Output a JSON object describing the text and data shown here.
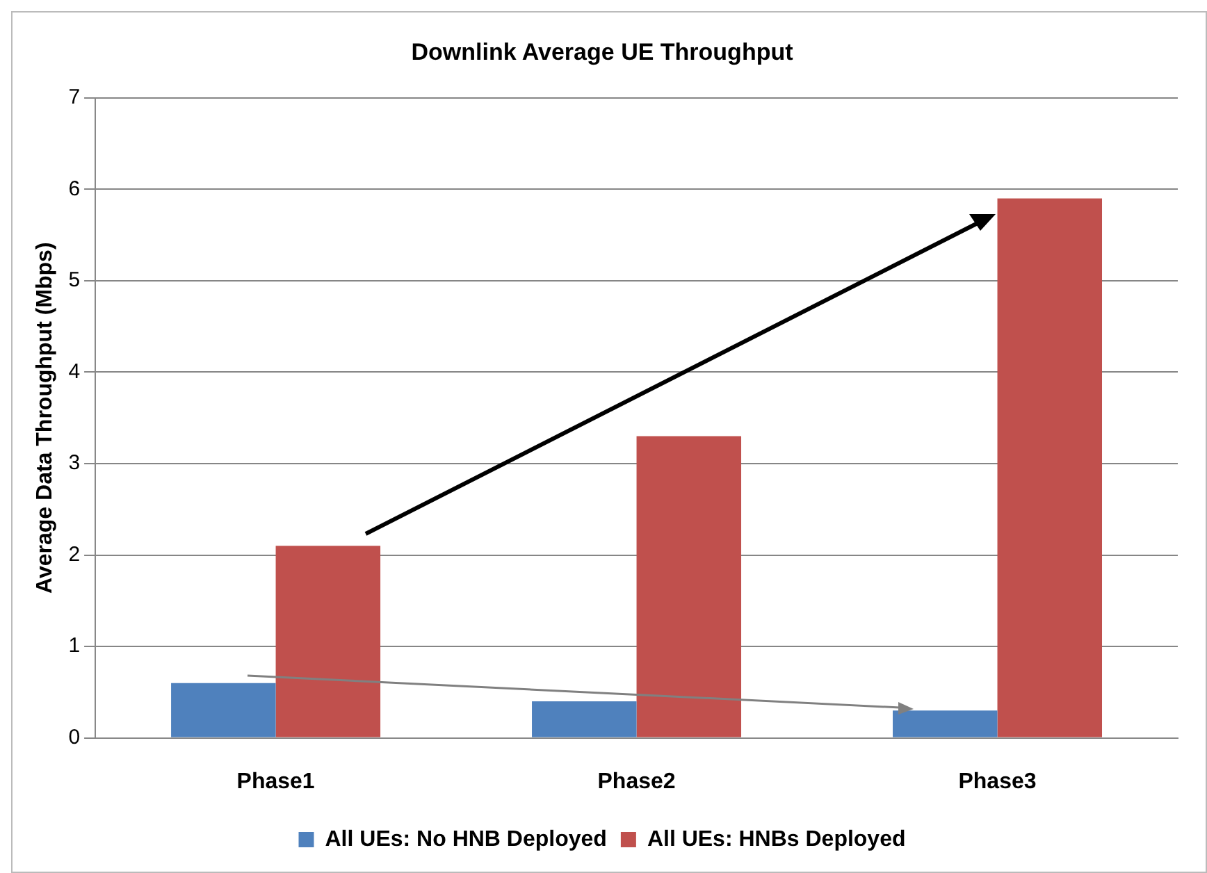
{
  "chart_data": {
    "type": "bar",
    "title": "Downlink Average UE Throughput",
    "ylabel": "Average Data Throughput (Mbps)",
    "categories": [
      "Phase1",
      "Phase2",
      "Phase3"
    ],
    "series": [
      {
        "name": "All UEs: No HNB Deployed",
        "color": "#4f81bd",
        "values": [
          0.6,
          0.4,
          0.3
        ]
      },
      {
        "name": "All UEs: HNBs Deployed",
        "color": "#c0504d",
        "values": [
          2.1,
          3.3,
          5.9
        ]
      }
    ],
    "ylim": [
      0,
      7
    ],
    "yticks": [
      0,
      1,
      2,
      3,
      4,
      5,
      6,
      7
    ],
    "grid": "y",
    "legend": "bottom"
  }
}
